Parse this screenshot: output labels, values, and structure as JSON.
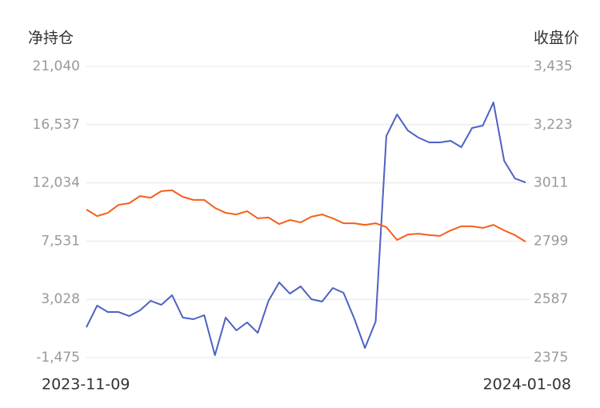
{
  "chart_data": {
    "type": "line",
    "y_title": "净持仓",
    "y2_title": "收盘价",
    "categories": [
      "2023-11-09",
      null,
      null,
      null,
      null,
      null,
      null,
      null,
      null,
      null,
      null,
      null,
      null,
      null,
      null,
      null,
      null,
      null,
      null,
      null,
      null,
      null,
      null,
      null,
      null,
      null,
      null,
      null,
      null,
      null,
      null,
      null,
      null,
      null,
      null,
      null,
      null,
      null,
      null,
      null,
      null,
      "2024-01-08"
    ],
    "series": [
      {
        "color": "#4e62c4",
        "axis": "y",
        "values": [
          875,
          2545,
          2050,
          2050,
          1741,
          2174,
          2916,
          2607,
          3349,
          1618,
          1494,
          1803,
          -1289,
          1618,
          628,
          1246,
          442,
          2916,
          4339,
          3473,
          4030,
          3040,
          2855,
          3906,
          3535,
          1556,
          -733,
          1308,
          15657,
          17327,
          16090,
          15534,
          15163,
          15163,
          15287,
          14792,
          16276,
          16462,
          18255,
          13740,
          12379,
          12070
        ]
      },
      {
        "color": "#f5601b",
        "axis": "y2",
        "values": [
          2914,
          2890,
          2902,
          2931,
          2937,
          2963,
          2957,
          2981,
          2984,
          2960,
          2949,
          2949,
          2920,
          2902,
          2896,
          2908,
          2882,
          2885,
          2861,
          2876,
          2867,
          2888,
          2896,
          2882,
          2864,
          2864,
          2858,
          2864,
          2850,
          2803,
          2823,
          2826,
          2821,
          2818,
          2838,
          2853,
          2853,
          2847,
          2858,
          2838,
          2821,
          2797
        ]
      }
    ],
    "ylim": [
      -1475,
      21040
    ],
    "yticks": [
      {
        "value": -1475,
        "label": "-1,475"
      },
      {
        "value": 3028,
        "label": "3,028"
      },
      {
        "value": 7531,
        "label": "7,531"
      },
      {
        "value": 12034,
        "label": "12,034"
      },
      {
        "value": 16537,
        "label": "16,537"
      },
      {
        "value": 21040,
        "label": "21,040"
      }
    ],
    "y2lim": [
      2375,
      3435
    ],
    "y2ticks": [
      2375,
      2587,
      2799,
      3011,
      {
        "value": 3223,
        "label": "3,223"
      },
      {
        "value": 3435,
        "label": "3,435"
      }
    ],
    "grid": true
  }
}
